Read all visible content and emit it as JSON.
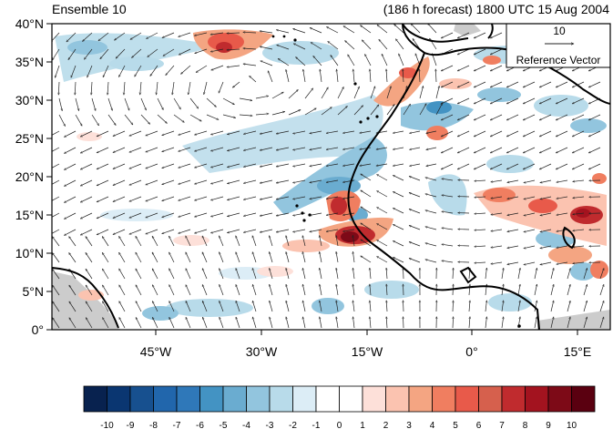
{
  "header": {
    "left_title": "Ensemble 10",
    "right_title": "(186 h forecast) 1800 UTC 15 Aug 2004"
  },
  "map": {
    "lat_labels": [
      "40°N",
      "35°N",
      "30°N",
      "25°N",
      "20°N",
      "15°N",
      "10°N",
      "5°N",
      "0°"
    ],
    "lon_labels": [
      "45°W",
      "30°W",
      "15°W",
      "0°",
      "15°E"
    ],
    "land_color": "#cccccc",
    "ocean_color": "#ffffff"
  },
  "reference_vector": {
    "magnitude": "10",
    "label": "Reference Vector"
  },
  "colorbar": {
    "labels": [
      "-10",
      "-9",
      "-8",
      "-7",
      "-6",
      "-5",
      "-4",
      "-3",
      "-2",
      "-1",
      "0",
      "1",
      "2",
      "3",
      "4",
      "5",
      "6",
      "7",
      "8",
      "9",
      "10"
    ],
    "colors": [
      "#08224f",
      "#0a3671",
      "#17508f",
      "#2166ac",
      "#2f78b9",
      "#4393c3",
      "#6aacd0",
      "#92c5de",
      "#b8dbea",
      "#dcedf6",
      "#ffffff",
      "#ffffff",
      "#fde0d9",
      "#fbc3b0",
      "#f4a582",
      "#f07e60",
      "#e85a4a",
      "#d6604d",
      "#c02b2e",
      "#a3131f",
      "#7d0a17",
      "#5a0010"
    ]
  }
}
